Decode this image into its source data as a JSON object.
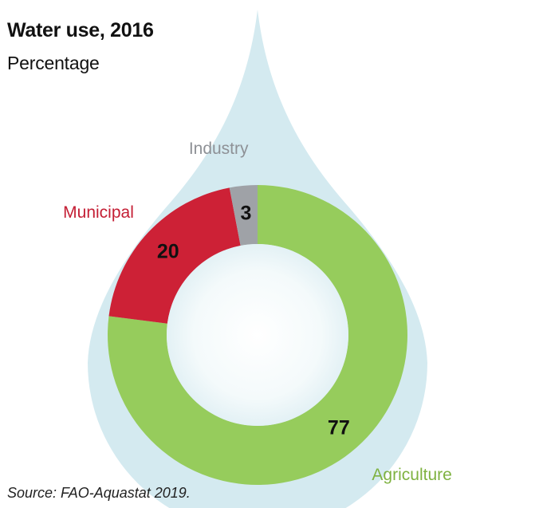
{
  "header": {
    "title": "Water use, 2016",
    "subtitle": "Percentage"
  },
  "footer": {
    "source": "Source: FAO-Aquastat 2019."
  },
  "chart_data": {
    "type": "pie",
    "donut": true,
    "title": "Water use, 2016",
    "subtitle": "Percentage",
    "slices": [
      {
        "label": "Agriculture",
        "value": 77,
        "color": "#96cc5c",
        "label_color": "#7fb241"
      },
      {
        "label": "Municipal",
        "value": 20,
        "color": "#cd2136",
        "label_color": "#c41e34"
      },
      {
        "label": "Industry",
        "value": 3,
        "color": "#9fa2a7",
        "label_color": "#8e9196"
      }
    ],
    "value_label_color": "#111111",
    "background_shape": "water-drop",
    "background_color": "#d4eaf0"
  }
}
